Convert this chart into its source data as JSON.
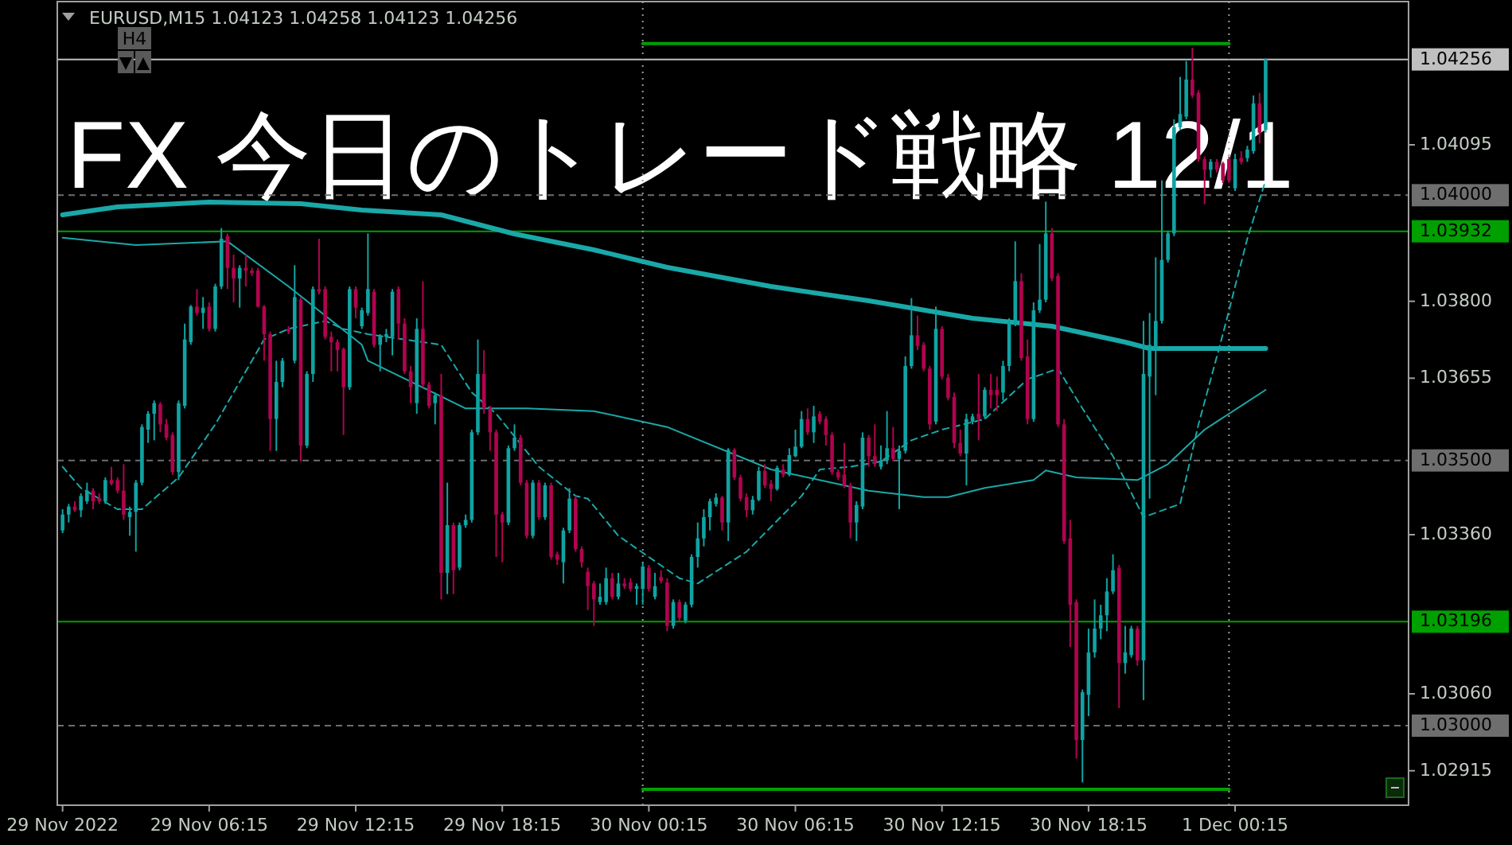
{
  "chart_data": {
    "type": "candlestick",
    "title": "FX 今日のトレード戦略 12/1",
    "annotations": [
      "EURUSD,M15  1.04123 1.04258 1.04123 1.04256",
      "H4"
    ],
    "x": [
      "2022-11-29T00:15",
      "2022-11-29T00:30",
      "2022-11-29T00:45",
      "2022-11-29T01:00",
      "2022-11-29T01:15",
      "2022-11-29T01:30",
      "2022-11-29T01:45",
      "2022-11-29T02:00",
      "2022-11-29T02:15",
      "2022-11-29T02:30",
      "2022-11-29T02:45",
      "2022-11-29T03:00",
      "2022-11-29T03:15",
      "2022-11-29T03:30",
      "2022-11-29T03:45",
      "2022-11-29T04:00",
      "2022-11-29T04:15",
      "2022-11-29T04:30",
      "2022-11-29T04:45",
      "2022-11-29T05:00",
      "2022-11-29T05:15",
      "2022-11-29T05:30",
      "2022-11-29T05:45",
      "2022-11-29T06:00",
      "2022-11-29T06:15",
      "2022-11-29T06:30",
      "2022-11-29T06:45",
      "2022-11-29T07:00",
      "2022-11-29T07:15",
      "2022-11-29T07:30",
      "2022-11-29T07:45",
      "2022-11-29T08:00",
      "2022-11-29T08:15",
      "2022-11-29T08:30",
      "2022-11-29T08:45",
      "2022-11-29T09:00",
      "2022-11-29T09:15",
      "2022-11-29T09:30",
      "2022-11-29T09:45",
      "2022-11-29T10:00",
      "2022-11-29T10:15",
      "2022-11-29T10:30",
      "2022-11-29T10:45",
      "2022-11-29T11:00",
      "2022-11-29T11:15",
      "2022-11-29T11:30",
      "2022-11-29T11:45",
      "2022-11-29T12:00",
      "2022-11-29T12:15",
      "2022-11-29T12:30",
      "2022-11-29T12:45",
      "2022-11-29T13:00",
      "2022-11-29T13:15",
      "2022-11-29T13:30",
      "2022-11-29T13:45",
      "2022-11-29T14:00",
      "2022-11-29T14:15",
      "2022-11-29T14:30",
      "2022-11-29T14:45",
      "2022-11-29T15:00",
      "2022-11-29T15:15",
      "2022-11-29T15:30",
      "2022-11-29T15:45",
      "2022-11-29T16:00",
      "2022-11-29T16:15",
      "2022-11-29T16:30",
      "2022-11-29T16:45",
      "2022-11-29T17:00",
      "2022-11-29T17:15",
      "2022-11-29T17:30",
      "2022-11-29T17:45",
      "2022-11-29T18:00",
      "2022-11-29T18:15",
      "2022-11-29T18:30",
      "2022-11-29T18:45",
      "2022-11-29T19:00",
      "2022-11-29T19:15",
      "2022-11-29T19:30",
      "2022-11-29T19:45",
      "2022-11-29T20:00",
      "2022-11-29T20:15",
      "2022-11-29T20:30",
      "2022-11-29T20:45",
      "2022-11-29T21:00",
      "2022-11-29T21:15",
      "2022-11-29T21:30",
      "2022-11-29T21:45",
      "2022-11-29T22:00",
      "2022-11-29T22:15",
      "2022-11-29T22:30",
      "2022-11-29T22:45",
      "2022-11-29T23:00",
      "2022-11-29T23:15",
      "2022-11-29T23:30",
      "2022-11-29T23:45",
      "2022-11-30T00:00",
      "2022-11-30T00:15",
      "2022-11-30T00:30",
      "2022-11-30T00:45",
      "2022-11-30T01:00",
      "2022-11-30T01:15",
      "2022-11-30T01:30",
      "2022-11-30T01:45",
      "2022-11-30T02:00",
      "2022-11-30T02:15",
      "2022-11-30T02:30",
      "2022-11-30T02:45",
      "2022-11-30T03:00",
      "2022-11-30T03:15",
      "2022-11-30T03:30",
      "2022-11-30T03:45",
      "2022-11-30T04:00",
      "2022-11-30T04:15",
      "2022-11-30T04:30",
      "2022-11-30T04:45",
      "2022-11-30T05:00",
      "2022-11-30T05:15",
      "2022-11-30T05:30",
      "2022-11-30T05:45",
      "2022-11-30T06:00",
      "2022-11-30T06:15",
      "2022-11-30T06:30",
      "2022-11-30T06:45",
      "2022-11-30T07:00",
      "2022-11-30T07:15",
      "2022-11-30T07:30",
      "2022-11-30T07:45",
      "2022-11-30T08:00",
      "2022-11-30T08:15",
      "2022-11-30T08:30",
      "2022-11-30T08:45",
      "2022-11-30T09:00",
      "2022-11-30T09:15",
      "2022-11-30T09:30",
      "2022-11-30T09:45",
      "2022-11-30T10:00",
      "2022-11-30T10:15",
      "2022-11-30T10:30",
      "2022-11-30T10:45",
      "2022-11-30T11:00",
      "2022-11-30T11:15",
      "2022-11-30T11:30",
      "2022-11-30T11:45",
      "2022-11-30T12:00",
      "2022-11-30T12:15",
      "2022-11-30T12:30",
      "2022-11-30T12:45",
      "2022-11-30T13:00",
      "2022-11-30T13:15",
      "2022-11-30T13:30",
      "2022-11-30T13:45",
      "2022-11-30T14:00",
      "2022-11-30T14:15",
      "2022-11-30T14:30",
      "2022-11-30T14:45",
      "2022-11-30T15:00",
      "2022-11-30T15:15",
      "2022-11-30T15:30",
      "2022-11-30T15:45",
      "2022-11-30T16:00",
      "2022-11-30T16:15",
      "2022-11-30T16:30",
      "2022-11-30T16:45",
      "2022-11-30T17:00",
      "2022-11-30T17:15",
      "2022-11-30T17:30",
      "2022-11-30T17:45",
      "2022-11-30T18:00",
      "2022-11-30T18:15",
      "2022-11-30T18:30",
      "2022-11-30T18:45",
      "2022-11-30T19:00",
      "2022-11-30T19:15",
      "2022-11-30T19:30",
      "2022-11-30T19:45",
      "2022-11-30T20:00",
      "2022-11-30T20:15",
      "2022-11-30T20:30",
      "2022-11-30T20:45",
      "2022-11-30T21:00",
      "2022-11-30T21:15",
      "2022-11-30T21:30",
      "2022-11-30T21:45",
      "2022-11-30T22:00",
      "2022-11-30T22:15",
      "2022-11-30T22:30",
      "2022-11-30T22:45",
      "2022-11-30T23:00",
      "2022-11-30T23:15",
      "2022-11-30T23:30",
      "2022-11-30T23:45",
      "2022-12-01T00:00",
      "2022-12-01T00:15",
      "2022-12-01T00:30",
      "2022-12-01T00:45",
      "2022-12-01T01:00",
      "2022-12-01T01:15",
      "2022-12-01T01:30"
    ],
    "ohlc": [
      [
        1.03368,
        1.03408,
        1.03363,
        1.03398
      ],
      [
        1.03398,
        1.03418,
        1.03383,
        1.03413
      ],
      [
        1.03413,
        1.03423,
        1.03403,
        1.03406
      ],
      [
        1.03406,
        1.03438,
        1.03393,
        1.03433
      ],
      [
        1.03423,
        1.03458,
        1.03418,
        1.03443
      ],
      [
        1.03443,
        1.03448,
        1.03408,
        1.03423
      ],
      [
        1.03428,
        1.03438,
        1.03418,
        1.03423
      ],
      [
        1.03423,
        1.03468,
        1.03418,
        1.03463
      ],
      [
        1.03463,
        1.03488,
        1.03453,
        1.03456
      ],
      [
        1.03463,
        1.03468,
        1.03438,
        1.03443
      ],
      [
        1.03443,
        1.03493,
        1.03388,
        1.03398
      ],
      [
        1.03393,
        1.03413,
        1.03358,
        1.03403
      ],
      [
        1.03403,
        1.03463,
        1.03328,
        1.03458
      ],
      [
        1.03458,
        1.03568,
        1.03453,
        1.03563
      ],
      [
        1.03558,
        1.03593,
        1.03533,
        1.03588
      ],
      [
        1.03588,
        1.03613,
        1.03538,
        1.03608
      ],
      [
        1.03606,
        1.0361,
        1.03553,
        1.03568
      ],
      [
        1.03568,
        1.03578,
        1.03538,
        1.03543
      ],
      [
        1.03548,
        1.03553,
        1.03473,
        1.03478
      ],
      [
        1.03478,
        1.03613,
        1.03463,
        1.03608
      ],
      [
        1.03603,
        1.03758,
        1.03598,
        1.03728
      ],
      [
        1.03723,
        1.03793,
        1.03718,
        1.0379
      ],
      [
        1.0379,
        1.03823,
        1.03773,
        1.03778
      ],
      [
        1.03778,
        1.03808,
        1.03748,
        1.03788
      ],
      [
        1.0379,
        1.03798,
        1.03743,
        1.03748
      ],
      [
        1.03748,
        1.03833,
        1.03743,
        1.03828
      ],
      [
        1.03828,
        1.03938,
        1.03823,
        1.03918
      ],
      [
        1.03923,
        1.03928,
        1.03823,
        1.03863
      ],
      [
        1.03863,
        1.03888,
        1.03798,
        1.03843
      ],
      [
        1.03843,
        1.03868,
        1.03788,
        1.03863
      ],
      [
        1.03863,
        1.03888,
        1.03828,
        1.03858
      ],
      [
        1.03858,
        1.03863,
        1.03848,
        1.03853
      ],
      [
        1.03858,
        1.03863,
        1.03788,
        1.0379
      ],
      [
        1.0379,
        1.03793,
        1.03688,
        1.03738
      ],
      [
        1.03738,
        1.03743,
        1.03518,
        1.03578
      ],
      [
        1.03578,
        1.03688,
        1.03518,
        1.03648
      ],
      [
        1.03648,
        1.03693,
        1.03638,
        1.03688
      ],
      [
        1.03748,
        1.03753,
        1.03738,
        1.03743
      ],
      [
        1.03688,
        1.03868,
        1.03683,
        1.03808
      ],
      [
        1.03803,
        1.03808,
        1.03498,
        1.03528
      ],
      [
        1.03528,
        1.03668,
        1.03523,
        1.03663
      ],
      [
        1.03663,
        1.03828,
        1.03648,
        1.03823
      ],
      [
        1.03823,
        1.03918,
        1.03813,
        1.03818
      ],
      [
        1.03823,
        1.03828,
        1.03728,
        1.03733
      ],
      [
        1.03733,
        1.03743,
        1.03668,
        1.03723
      ],
      [
        1.03723,
        1.03728,
        1.03668,
        1.03708
      ],
      [
        1.0371,
        1.03713,
        1.03548,
        1.03638
      ],
      [
        1.03638,
        1.03828,
        1.03633,
        1.03823
      ],
      [
        1.03823,
        1.03828,
        1.03768,
        1.03788
      ],
      [
        1.03753,
        1.03788,
        1.03748,
        1.03783
      ],
      [
        1.03778,
        1.03928,
        1.03773,
        1.03823
      ],
      [
        1.03818,
        1.03823,
        1.03713,
        1.03718
      ],
      [
        1.03718,
        1.03738,
        1.03668,
        1.03733
      ],
      [
        1.03733,
        1.03748,
        1.03723,
        1.03738
      ],
      [
        1.03733,
        1.03823,
        1.03698,
        1.03818
      ],
      [
        1.03823,
        1.03828,
        1.03728,
        1.03758
      ],
      [
        1.03758,
        1.03768,
        1.03663,
        1.03668
      ],
      [
        1.03668,
        1.03678,
        1.03608,
        1.03638
      ],
      [
        1.03608,
        1.03768,
        1.03588,
        1.03748
      ],
      [
        1.03748,
        1.03838,
        1.03638,
        1.03643
      ],
      [
        1.03643,
        1.03648,
        1.03598,
        1.03603
      ],
      [
        1.03608,
        1.03628,
        1.03568,
        1.03623
      ],
      [
        1.03623,
        1.03663,
        1.03238,
        1.03288
      ],
      [
        1.03288,
        1.03458,
        1.03248,
        1.03378
      ],
      [
        1.03378,
        1.03383,
        1.03248,
        1.03293
      ],
      [
        1.03298,
        1.03383,
        1.03293,
        1.03378
      ],
      [
        1.03378,
        1.03398,
        1.03373,
        1.03388
      ],
      [
        1.03388,
        1.03558,
        1.03383,
        1.03553
      ],
      [
        1.03553,
        1.03728,
        1.03548,
        1.03663
      ],
      [
        1.03663,
        1.03708,
        1.03588,
        1.03598
      ],
      [
        1.03598,
        1.03603,
        1.03518,
        1.03553
      ],
      [
        1.03553,
        1.03558,
        1.03318,
        1.03398
      ],
      [
        1.03398,
        1.03403,
        1.03308,
        1.03383
      ],
      [
        1.03383,
        1.03528,
        1.03378,
        1.03523
      ],
      [
        1.03523,
        1.03568,
        1.03518,
        1.03543
      ],
      [
        1.03543,
        1.03548,
        1.03453,
        1.03458
      ],
      [
        1.03458,
        1.03463,
        1.03353,
        1.03358
      ],
      [
        1.03358,
        1.03463,
        1.03353,
        1.03458
      ],
      [
        1.03458,
        1.03463,
        1.03388,
        1.03393
      ],
      [
        1.03393,
        1.03458,
        1.03388,
        1.03453
      ],
      [
        1.03453,
        1.03458,
        1.03313,
        1.03318
      ],
      [
        1.03323,
        1.03328,
        1.03303,
        1.03313
      ],
      [
        1.03308,
        1.03373,
        1.03268,
        1.03368
      ],
      [
        1.03368,
        1.03448,
        1.03363,
        1.03428
      ],
      [
        1.03428,
        1.03433,
        1.03328,
        1.03333
      ],
      [
        1.03333,
        1.03338,
        1.03298,
        1.03308
      ],
      [
        1.0329,
        1.03298,
        1.03218,
        1.03263
      ],
      [
        1.03268,
        1.03273,
        1.03188,
        1.03238
      ],
      [
        1.03233,
        1.03268,
        1.03228,
        1.03243
      ],
      [
        1.03233,
        1.03298,
        1.03228,
        1.03278
      ],
      [
        1.03278,
        1.03288,
        1.03238,
        1.03243
      ],
      [
        1.03243,
        1.03288,
        1.03238,
        1.03268
      ],
      [
        1.03268,
        1.03278,
        1.03258,
        1.03263
      ],
      [
        1.0327,
        1.03278,
        1.03253,
        1.03258
      ],
      [
        1.03258,
        1.03268,
        1.03228,
        1.03263
      ],
      [
        1.03258,
        1.03308,
        1.03228,
        1.033
      ],
      [
        1.03298,
        1.03303,
        1.03253,
        1.03258
      ],
      [
        1.03243,
        1.03288,
        1.03238,
        1.03263
      ],
      [
        1.0328,
        1.03293,
        1.03268,
        1.03273
      ],
      [
        1.0327,
        1.03278,
        1.03178,
        1.03188
      ],
      [
        1.03188,
        1.03238,
        1.03183,
        1.03233
      ],
      [
        1.03233,
        1.03238,
        1.03198,
        1.03203
      ],
      [
        1.03198,
        1.03233,
        1.03193,
        1.03228
      ],
      [
        1.03228,
        1.03323,
        1.03223,
        1.03318
      ],
      [
        1.03318,
        1.03383,
        1.03298,
        1.03353
      ],
      [
        1.03353,
        1.03408,
        1.03338,
        1.03393
      ],
      [
        1.03393,
        1.03428,
        1.03368,
        1.03423
      ],
      [
        1.03418,
        1.03438,
        1.03413,
        1.0343
      ],
      [
        1.0343,
        1.03433,
        1.03368,
        1.03383
      ],
      [
        1.03383,
        1.03523,
        1.03348,
        1.0352
      ],
      [
        1.0352,
        1.03523,
        1.03463,
        1.03468
      ],
      [
        1.03468,
        1.03473,
        1.03423,
        1.03428
      ],
      [
        1.03431,
        1.03438,
        1.03393,
        1.03406
      ],
      [
        1.03406,
        1.03433,
        1.03398,
        1.03426
      ],
      [
        1.03426,
        1.03488,
        1.03423,
        1.0348
      ],
      [
        1.0348,
        1.03493,
        1.03448,
        1.03453
      ],
      [
        1.03456,
        1.03463,
        1.03423,
        1.03446
      ],
      [
        1.03446,
        1.0349,
        1.03443,
        1.03486
      ],
      [
        1.03483,
        1.03493,
        1.03468,
        1.03473
      ],
      [
        1.03473,
        1.03523,
        1.0347,
        1.0351
      ],
      [
        1.03508,
        1.03558,
        1.03506,
        1.03526
      ],
      [
        1.03526,
        1.03593,
        1.03523,
        1.03578
      ],
      [
        1.03578,
        1.03598,
        1.03548,
        1.03553
      ],
      [
        1.03553,
        1.03603,
        1.03533,
        1.03583
      ],
      [
        1.03588,
        1.03593,
        1.03568,
        1.03573
      ],
      [
        1.03578,
        1.03583,
        1.03528,
        1.03548
      ],
      [
        1.03548,
        1.03553,
        1.03473,
        1.03478
      ],
      [
        1.03478,
        1.03483,
        1.03463,
        1.03468
      ],
      [
        1.03473,
        1.03533,
        1.03448,
        1.03453
      ],
      [
        1.03453,
        1.03458,
        1.03353,
        1.03383
      ],
      [
        1.03383,
        1.03423,
        1.03348,
        1.03416
      ],
      [
        1.03413,
        1.03553,
        1.03408,
        1.03543
      ],
      [
        1.03543,
        1.03548,
        1.03488,
        1.03508
      ],
      [
        1.03508,
        1.03568,
        1.03488,
        1.03493
      ],
      [
        1.03488,
        1.03528,
        1.03483,
        1.035
      ],
      [
        1.035,
        1.03593,
        1.03493,
        1.03523
      ],
      [
        1.03523,
        1.03563,
        1.03498,
        1.03503
      ],
      [
        1.03503,
        1.03528,
        1.03408,
        1.03518
      ],
      [
        1.03518,
        1.03696,
        1.03513,
        1.03678
      ],
      [
        1.03678,
        1.03806,
        1.03673,
        1.03736
      ],
      [
        1.03736,
        1.03773,
        1.03708,
        1.03716
      ],
      [
        1.03718,
        1.03723,
        1.03668,
        1.03673
      ],
      [
        1.03673,
        1.03678,
        1.03558,
        1.03568
      ],
      [
        1.03573,
        1.0379,
        1.03568,
        1.03748
      ],
      [
        1.03748,
        1.03753,
        1.03653,
        1.03658
      ],
      [
        1.03656,
        1.03663,
        1.03613,
        1.03618
      ],
      [
        1.0362,
        1.03628,
        1.03523,
        1.03533
      ],
      [
        1.03533,
        1.03558,
        1.03508,
        1.03513
      ],
      [
        1.03513,
        1.03588,
        1.03453,
        1.03578
      ],
      [
        1.03573,
        1.03588,
        1.03568,
        1.03583
      ],
      [
        1.03588,
        1.03663,
        1.03538,
        1.03578
      ],
      [
        1.03583,
        1.03638,
        1.03578,
        1.03633
      ],
      [
        1.03633,
        1.03663,
        1.03598,
        1.03623
      ],
      [
        1.03633,
        1.03658,
        1.03593,
        1.03623
      ],
      [
        1.03628,
        1.03688,
        1.03613,
        1.03678
      ],
      [
        1.03678,
        1.03768,
        1.03668,
        1.03758
      ],
      [
        1.03758,
        1.03913,
        1.03753,
        1.03838
      ],
      [
        1.03838,
        1.03853,
        1.03688,
        1.03693
      ],
      [
        1.03696,
        1.03728,
        1.03568,
        1.03578
      ],
      [
        1.03578,
        1.03798,
        1.03573,
        1.03783
      ],
      [
        1.03783,
        1.03908,
        1.03778,
        1.03803
      ],
      [
        1.03803,
        1.03988,
        1.03798,
        1.03928
      ],
      [
        1.03928,
        1.03938,
        1.03838,
        1.03843
      ],
      [
        1.03848,
        1.03853,
        1.03563,
        1.03568
      ],
      [
        1.03568,
        1.03578,
        1.03343,
        1.03348
      ],
      [
        1.03353,
        1.03388,
        1.03148,
        1.03228
      ],
      [
        1.03233,
        1.03238,
        1.02938,
        1.02973
      ],
      [
        1.02973,
        1.03068,
        1.02893,
        1.03063
      ],
      [
        1.03058,
        1.03183,
        1.03018,
        1.03138
      ],
      [
        1.03138,
        1.03238,
        1.03128,
        1.03183
      ],
      [
        1.03183,
        1.03228,
        1.03163,
        1.03208
      ],
      [
        1.03208,
        1.03278,
        1.03178,
        1.03253
      ],
      [
        1.03253,
        1.03323,
        1.03248,
        1.03293
      ],
      [
        1.03298,
        1.03303,
        1.03033,
        1.03118
      ],
      [
        1.03118,
        1.03188,
        1.03098,
        1.03138
      ],
      [
        1.03133,
        1.03188,
        1.03128,
        1.03183
      ],
      [
        1.03183,
        1.03188,
        1.03113,
        1.03123
      ],
      [
        1.03123,
        1.03763,
        1.03048,
        1.03663
      ],
      [
        1.03658,
        1.03778,
        1.03428,
        1.03718
      ],
      [
        1.03713,
        1.03883,
        1.03623,
        1.03763
      ],
      [
        1.03763,
        1.04028,
        1.03758,
        1.03878
      ],
      [
        1.03878,
        1.03933,
        1.03873,
        1.03928
      ],
      [
        1.03928,
        1.04143,
        1.03923,
        1.04128
      ],
      [
        1.04128,
        1.04223,
        1.04123,
        1.04153
      ],
      [
        1.04148,
        1.04253,
        1.04143,
        1.04218
      ],
      [
        1.04218,
        1.04278,
        1.04183,
        1.04188
      ],
      [
        1.04193,
        1.04198,
        1.04063,
        1.04068
      ],
      [
        1.04068,
        1.04073,
        1.03983,
        1.04048
      ],
      [
        1.04048,
        1.04068,
        1.04033,
        1.04063
      ],
      [
        1.04063,
        1.04068,
        1.04043,
        1.04048
      ],
      [
        1.0406,
        1.04063,
        1.04023,
        1.04028
      ],
      [
        1.04068,
        1.04073,
        1.04023,
        1.04028
      ],
      [
        1.04013,
        1.04078,
        1.04008,
        1.04068
      ],
      [
        1.0407,
        1.04083,
        1.04058,
        1.04063
      ],
      [
        1.0407,
        1.04093,
        1.04063,
        1.04086
      ],
      [
        1.04083,
        1.04188,
        1.04078,
        1.04173
      ],
      [
        1.04173,
        1.04193,
        1.04098,
        1.04118
      ],
      [
        1.04123,
        1.04258,
        1.04118,
        1.04256
      ]
    ],
    "colors": [
      "#10a3a3",
      "#10a3a3",
      "#b0044f",
      "#10a3a3",
      "#10a3a3",
      "#b0044f",
      "#b0044f",
      "#10a3a3",
      "#b0044f",
      "#b0044f",
      "#b0044f",
      "#10a3a3",
      "#10a3a3",
      "#10a3a3",
      "#10a3a3",
      "#10a3a3",
      "#b0044f",
      "#b0044f",
      "#b0044f",
      "#10a3a3",
      "#10a3a3",
      "#10a3a3",
      "#b0044f",
      "#10a3a3",
      "#b0044f",
      "#10a3a3",
      "#10a3a3",
      "#b0044f",
      "#b0044f",
      "#10a3a3",
      "#b0044f",
      "#b0044f",
      "#b0044f",
      "#b0044f",
      "#b0044f",
      "#10a3a3",
      "#10a3a3",
      "#b0044f",
      "#10a3a3",
      "#b0044f",
      "#10a3a3",
      "#10a3a3",
      "#b0044f",
      "#b0044f",
      "#b0044f",
      "#b0044f",
      "#b0044f",
      "#10a3a3",
      "#b0044f",
      "#10a3a3",
      "#10a3a3",
      "#b0044f",
      "#10a3a3",
      "#10a3a3",
      "#10a3a3",
      "#b0044f",
      "#b0044f",
      "#b0044f",
      "#10a3a3",
      "#b0044f",
      "#b0044f",
      "#10a3a3",
      "#b0044f",
      "#10a3a3",
      "#b0044f",
      "#10a3a3",
      "#10a3a3",
      "#10a3a3",
      "#10a3a3",
      "#b0044f",
      "#b0044f",
      "#b0044f",
      "#b0044f",
      "#10a3a3",
      "#10a3a3",
      "#b0044f",
      "#b0044f",
      "#10a3a3",
      "#b0044f",
      "#10a3a3",
      "#b0044f",
      "#b0044f",
      "#10a3a3",
      "#10a3a3",
      "#b0044f",
      "#b0044f",
      "#b0044f",
      "#b0044f",
      "#10a3a3",
      "#10a3a3",
      "#b0044f",
      "#10a3a3",
      "#b0044f",
      "#b0044f",
      "#10a3a3",
      "#10a3a3",
      "#b0044f",
      "#10a3a3",
      "#b0044f",
      "#b0044f",
      "#10a3a3",
      "#b0044f",
      "#10a3a3",
      "#10a3a3",
      "#10a3a3",
      "#10a3a3",
      "#10a3a3",
      "#10a3a3",
      "#b0044f",
      "#10a3a3",
      "#b0044f",
      "#b0044f",
      "#b0044f",
      "#10a3a3",
      "#10a3a3",
      "#b0044f",
      "#b0044f",
      "#10a3a3",
      "#b0044f",
      "#10a3a3",
      "#10a3a3",
      "#10a3a3",
      "#b0044f",
      "#10a3a3",
      "#b0044f",
      "#b0044f",
      "#b0044f",
      "#b0044f",
      "#b0044f",
      "#b0044f",
      "#10a3a3",
      "#10a3a3",
      "#b0044f",
      "#b0044f",
      "#10a3a3",
      "#10a3a3",
      "#b0044f",
      "#10a3a3",
      "#10a3a3",
      "#10a3a3",
      "#b0044f",
      "#b0044f",
      "#b0044f",
      "#10a3a3",
      "#b0044f",
      "#b0044f",
      "#b0044f",
      "#b0044f",
      "#10a3a3",
      "#10a3a3",
      "#b0044f",
      "#10a3a3",
      "#b0044f",
      "#b0044f",
      "#10a3a3",
      "#10a3a3",
      "#10a3a3",
      "#b0044f",
      "#b0044f",
      "#10a3a3",
      "#10a3a3",
      "#10a3a3",
      "#b0044f",
      "#b0044f",
      "#b0044f",
      "#b0044f",
      "#b0044f",
      "#10a3a3",
      "#10a3a3",
      "#10a3a3",
      "#10a3a3",
      "#10a3a3",
      "#10a3a3",
      "#b0044f",
      "#10a3a3",
      "#10a3a3",
      "#b0044f",
      "#10a3a3",
      "#10a3a3",
      "#10a3a3",
      "#10a3a3",
      "#10a3a3",
      "#10a3a3",
      "#10a3a3",
      "#10a3a3",
      "#b0044f",
      "#b0044f",
      "#b0044f",
      "#10a3a3",
      "#b0044f",
      "#b0044f",
      "#b0044f",
      "#10a3a3",
      "#b0044f",
      "#10a3a3",
      "#10a3a3",
      "#b0044f",
      "#10a3a3"
    ],
    "series": [
      {
        "type": "line",
        "color": "#1aa8a8",
        "x": [
          "2022-11-29T00:15",
          "2022-11-29T02:30",
          "2022-11-29T06:15",
          "2022-11-29T10:00",
          "2022-11-29T12:30",
          "2022-11-29T15:45",
          "2022-11-29T18:45",
          "2022-11-29T22:00",
          "2022-11-30T01:00",
          "2022-11-30T05:15",
          "2022-11-30T09:15",
          "2022-11-30T13:30",
          "2022-11-30T16:45",
          "2022-11-30T19:45",
          "2022-11-30T20:45",
          "2022-12-01T01:30"
        ],
        "values": [
          1.03963,
          1.03978,
          1.03987,
          1.03984,
          1.03972,
          1.03963,
          1.03927,
          1.03897,
          1.03864,
          1.03828,
          1.03801,
          1.03768,
          1.03753,
          1.03723,
          1.03711,
          1.03711
        ]
      },
      {
        "type": "line",
        "color": "#1aa8a8",
        "x": [
          "2022-11-29T00:15",
          "2022-11-29T03:15",
          "2022-11-29T07:00",
          "2022-11-29T09:30",
          "2022-11-29T12:30",
          "2022-11-29T12:45",
          "2022-11-29T16:45",
          "2022-11-29T19:15",
          "2022-11-29T22:00",
          "2022-11-30T01:00",
          "2022-11-30T05:15",
          "2022-11-30T09:15",
          "2022-11-30T11:30",
          "2022-11-30T12:30",
          "2022-11-30T14:00",
          "2022-11-30T16:00",
          "2022-11-30T16:30",
          "2022-11-30T17:45",
          "2022-11-30T20:15",
          "2022-11-30T21:30",
          "2022-11-30T23:00",
          "2022-12-01T00:00",
          "2022-12-01T01:30"
        ],
        "values": [
          1.0392,
          1.03906,
          1.03913,
          1.03828,
          1.03718,
          1.03688,
          1.03598,
          1.03598,
          1.03593,
          1.03563,
          1.03483,
          1.03443,
          1.03431,
          1.03431,
          1.03448,
          1.03463,
          1.03481,
          1.03468,
          1.03463,
          1.03493,
          1.03558,
          1.03588,
          1.03633
        ]
      },
      {
        "type": "line",
        "color": "#1aa8a8",
        "line_style": "dashed",
        "x": [
          "2022-11-29T00:15",
          "2022-11-29T01:00",
          "2022-11-29T02:30",
          "2022-11-29T03:30",
          "2022-11-29T05:00",
          "2022-11-29T06:30",
          "2022-11-29T07:15",
          "2022-11-29T08:30",
          "2022-11-29T09:30",
          "2022-11-29T11:00",
          "2022-11-29T11:45",
          "2022-11-29T12:45",
          "2022-11-29T15:45",
          "2022-11-29T17:00",
          "2022-11-29T18:00",
          "2022-11-29T19:45",
          "2022-11-29T21:15",
          "2022-11-29T21:45",
          "2022-11-29T23:00",
          "2022-11-30T00:15",
          "2022-11-30T01:30",
          "2022-11-30T02:15",
          "2022-11-30T04:15",
          "2022-11-30T06:30",
          "2022-11-30T07:15",
          "2022-11-30T08:30",
          "2022-11-30T09:45",
          "2022-11-30T11:00",
          "2022-11-30T12:15",
          "2022-11-30T14:00",
          "2022-11-30T15:45",
          "2022-11-30T17:00",
          "2022-11-30T18:00",
          "2022-11-30T19:15",
          "2022-11-30T20:30",
          "2022-11-30T22:00",
          "2022-11-30T22:45",
          "2022-11-30T23:45",
          "2022-12-01T00:45",
          "2022-12-01T01:30"
        ],
        "values": [
          1.03488,
          1.03448,
          1.03408,
          1.03408,
          1.03468,
          1.03568,
          1.03628,
          1.03728,
          1.03748,
          1.03763,
          1.03748,
          1.03738,
          1.03718,
          1.03628,
          1.03588,
          1.03488,
          1.03433,
          1.03428,
          1.03358,
          1.03318,
          1.03278,
          1.03268,
          1.03328,
          1.03433,
          1.03483,
          1.03488,
          1.03498,
          1.03538,
          1.03558,
          1.03578,
          1.03653,
          1.03673,
          1.03598,
          1.03508,
          1.03393,
          1.03418,
          1.03568,
          1.03738,
          1.03918,
          1.04028
        ]
      },
      {
        "type": "line",
        "color": "#00a000",
        "x": [
          "2022-11-30T00:00",
          "2022-12-01T00:00"
        ],
        "values": [
          1.04286,
          1.04286
        ]
      },
      {
        "type": "line",
        "color": "#00a000",
        "x": [
          "2022-11-30T00:00",
          "2022-12-01T00:00"
        ],
        "values": [
          1.0288,
          1.0288
        ]
      }
    ],
    "ref_lines": [
      {
        "axis": "y",
        "value": 1.04256,
        "label": "1.04256",
        "color": "#c0c0c0"
      },
      {
        "axis": "y",
        "value": 1.04,
        "label": "1.04000",
        "color": "#6e6e6e",
        "line_style": "dashed"
      },
      {
        "axis": "y",
        "value": 1.03932,
        "label": "1.03932",
        "color": "#00a000"
      },
      {
        "axis": "y",
        "value": 1.035,
        "label": "1.03500",
        "color": "#6e6e6e",
        "line_style": "dashed"
      },
      {
        "axis": "y",
        "value": 1.03196,
        "label": "1.03196",
        "color": "#00a000"
      },
      {
        "axis": "y",
        "value": 1.03,
        "label": "1.03000",
        "color": "#6e6e6e",
        "line_style": "dashed"
      },
      {
        "axis": "x",
        "value": "2022-11-30T00:00",
        "color": "#9a9a9a",
        "line_style": "dotted"
      },
      {
        "axis": "x",
        "value": "2022-12-01T00:00",
        "color": "#9a9a9a",
        "line_style": "dotted"
      }
    ],
    "xlim": [
      "2022-11-29T00:02",
      "2022-12-01T07:21"
    ],
    "xticks": [
      {
        "value": "2022-11-29T00:15",
        "label": "29 Nov 2022"
      },
      {
        "value": "2022-11-29T06:15",
        "label": "29 Nov 06:15"
      },
      {
        "value": "2022-11-29T12:15",
        "label": "29 Nov 12:15"
      },
      {
        "value": "2022-11-29T18:15",
        "label": "29 Nov 18:15"
      },
      {
        "value": "2022-11-30T00:15",
        "label": "30 Nov 00:15"
      },
      {
        "value": "2022-11-30T06:15",
        "label": "30 Nov 06:15"
      },
      {
        "value": "2022-11-30T12:15",
        "label": "30 Nov 12:15"
      },
      {
        "value": "2022-11-30T18:15",
        "label": "30 Nov 18:15"
      },
      {
        "value": "2022-12-01T00:15",
        "label": "1 Dec 00:15"
      }
    ],
    "ylim": [
      1.0285,
      1.04365
    ],
    "yticks": [
      1.04095,
      {
        "value": 1.038,
        "label": "1.03800"
      },
      1.03655,
      {
        "value": 1.0336,
        "label": "1.03360"
      },
      {
        "value": 1.0306,
        "label": "1.03060"
      },
      1.02915
    ]
  }
}
